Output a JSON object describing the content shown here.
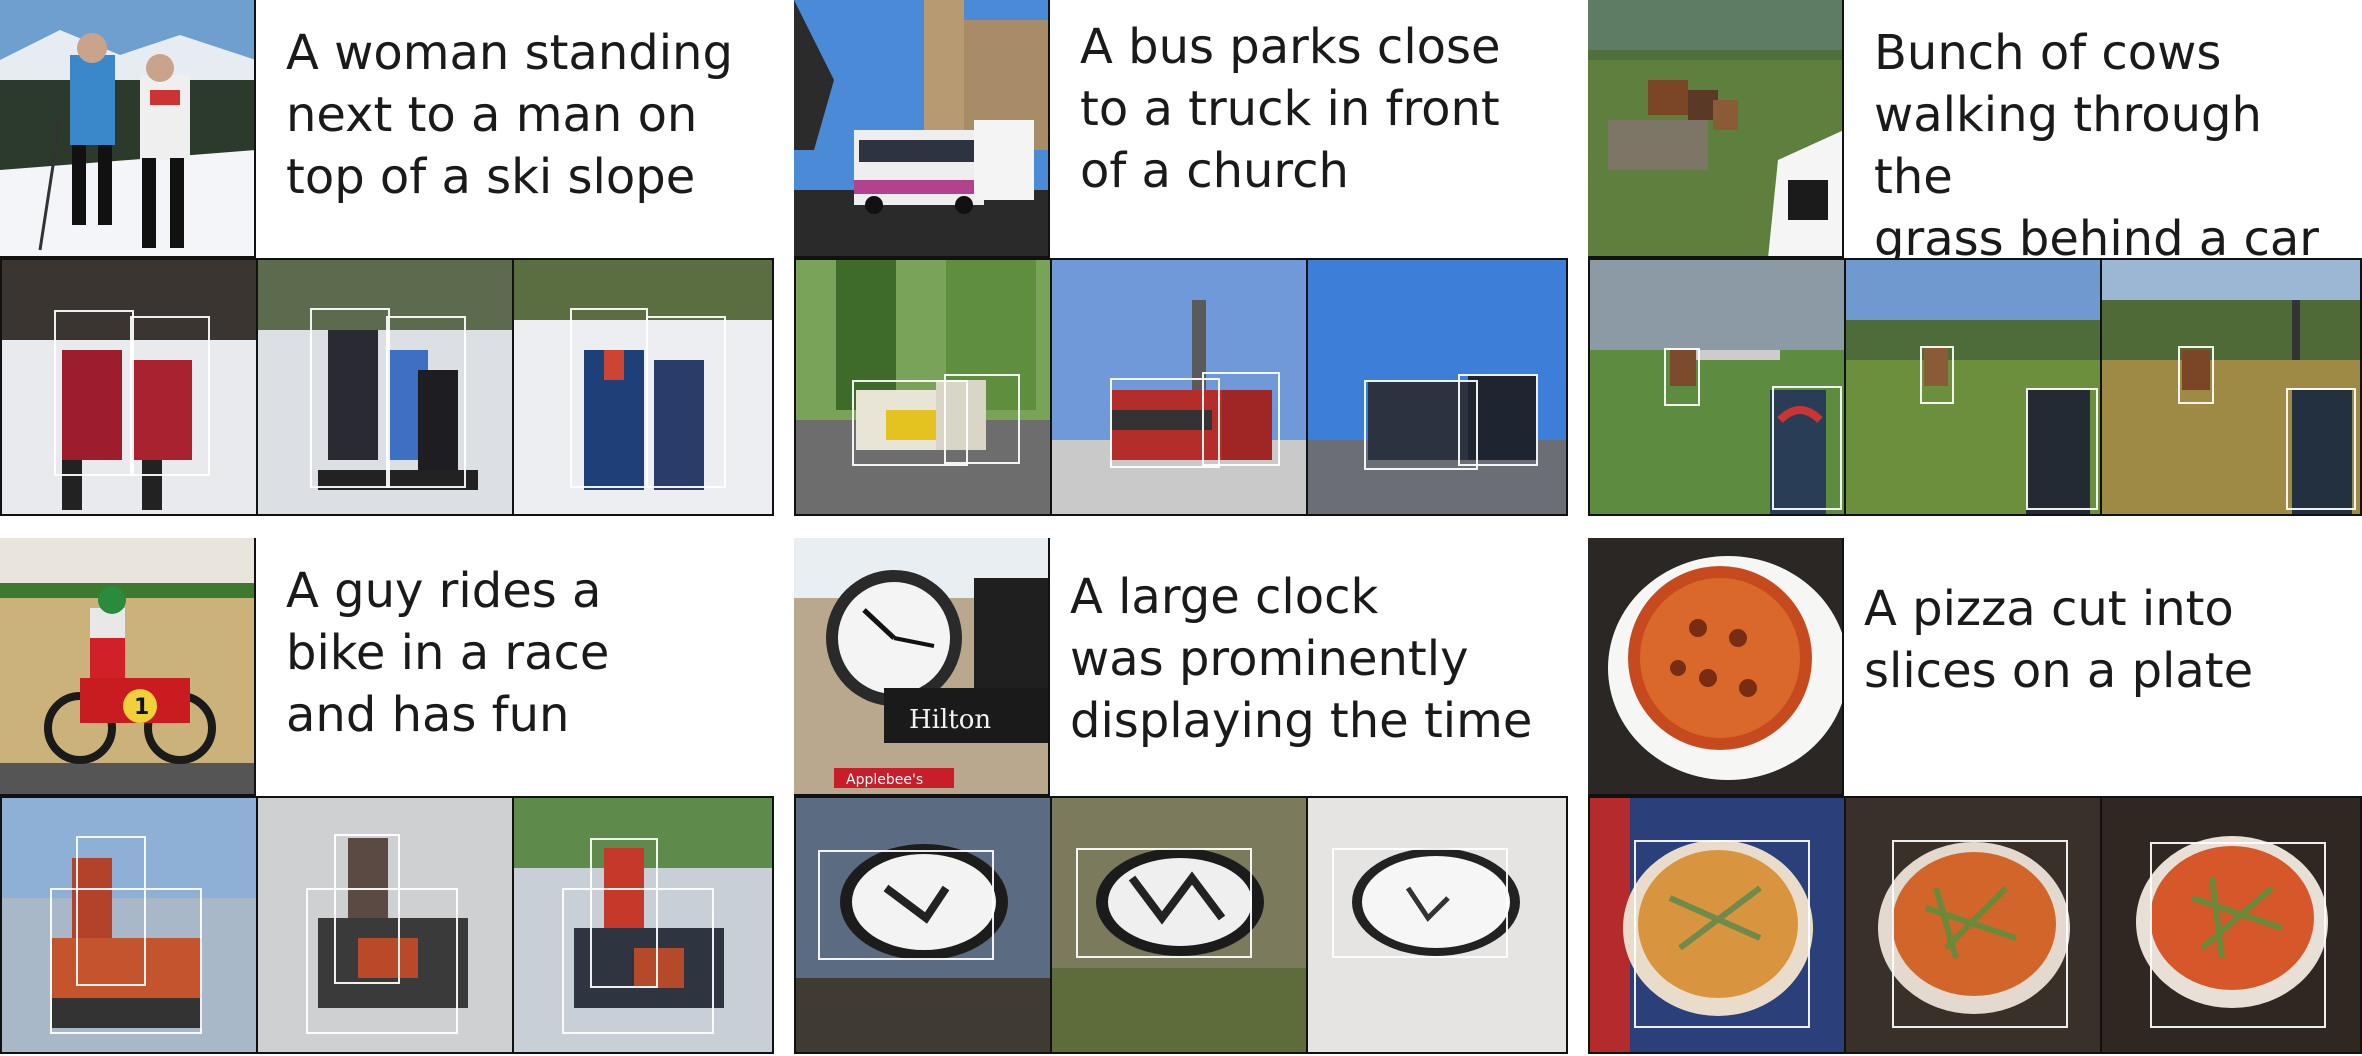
{
  "panels": [
    {
      "caption": "A woman standing\nnext to a man on\ntop of a ski slope",
      "photo": "ski-slope-couple-photo",
      "generated": "generated-ski-people-image"
    },
    {
      "caption": "A bus parks close\nto a truck in front\nof a church",
      "photo": "bus-by-church-photo",
      "generated": "generated-bus-image"
    },
    {
      "caption": "Bunch of cows\nwalking through the\ngrass behind a car",
      "photo": "cows-field-car-photo",
      "generated": "generated-cow-field-image"
    },
    {
      "caption": "A guy rides a\nbike in a race\nand has fun",
      "photo": "motorcycle-race-photo",
      "generated": "generated-motorbike-image"
    },
    {
      "caption": "A large clock\nwas prominently\ndisplaying the time",
      "photo": "street-clock-photo",
      "generated": "generated-clock-image"
    },
    {
      "caption": "A pizza cut into\nslices on a plate",
      "photo": "pizza-on-plate-photo",
      "generated": "generated-pizza-image"
    }
  ],
  "photo_text": {
    "hilton_sign": "Hilton",
    "shop_sign": "Applebee's",
    "bike_number": "1"
  }
}
